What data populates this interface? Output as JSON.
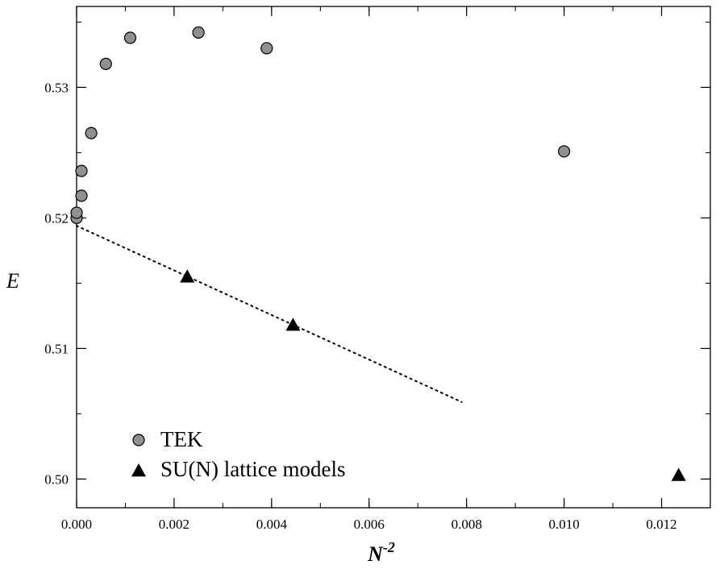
{
  "chart_data": {
    "type": "scatter",
    "xlabel": "N",
    "xlabel_superscript": "-2",
    "ylabel": "E",
    "xlim": [
      0.0,
      0.013
    ],
    "ylim": [
      0.4978,
      0.5362
    ],
    "x_ticks": [
      0.0,
      0.002,
      0.004,
      0.006,
      0.008,
      0.01,
      0.012
    ],
    "x_tick_labels": [
      "0.000",
      "0.002",
      "0.004",
      "0.006",
      "0.008",
      "0.010",
      "0.012"
    ],
    "x_minor_step": 0.001,
    "y_ticks": [
      0.5,
      0.51,
      0.52,
      0.53
    ],
    "y_tick_labels": [
      "0.50",
      "0.51",
      "0.52",
      "0.53"
    ],
    "y_minor_step": 0.005,
    "grid": false,
    "legend_position": "bottom-left",
    "series": [
      {
        "name": "TEK",
        "marker": "circle",
        "color": "#909090",
        "points": [
          {
            "x": 0.0,
            "y": 0.52
          },
          {
            "x": 0.0,
            "y": 0.5204
          },
          {
            "x": 0.0001,
            "y": 0.5217
          },
          {
            "x": 0.0001,
            "y": 0.5236
          },
          {
            "x": 0.0003,
            "y": 0.5265
          },
          {
            "x": 0.0006,
            "y": 0.5318
          },
          {
            "x": 0.0011,
            "y": 0.5338
          },
          {
            "x": 0.0025,
            "y": 0.5342
          },
          {
            "x": 0.0039,
            "y": 0.533
          },
          {
            "x": 0.01,
            "y": 0.5251
          }
        ]
      },
      {
        "name": "SU(N) lattice models",
        "marker": "triangle",
        "color": "#000000",
        "points": [
          {
            "x": 0.00227,
            "y": 0.5155
          },
          {
            "x": 0.00444,
            "y": 0.5118
          },
          {
            "x": 0.01235,
            "y": 0.5003
          }
        ]
      }
    ],
    "fit_line": {
      "style": "dotted",
      "x": [
        0.0,
        0.0079
      ],
      "y": [
        0.5194,
        0.5059
      ]
    }
  }
}
